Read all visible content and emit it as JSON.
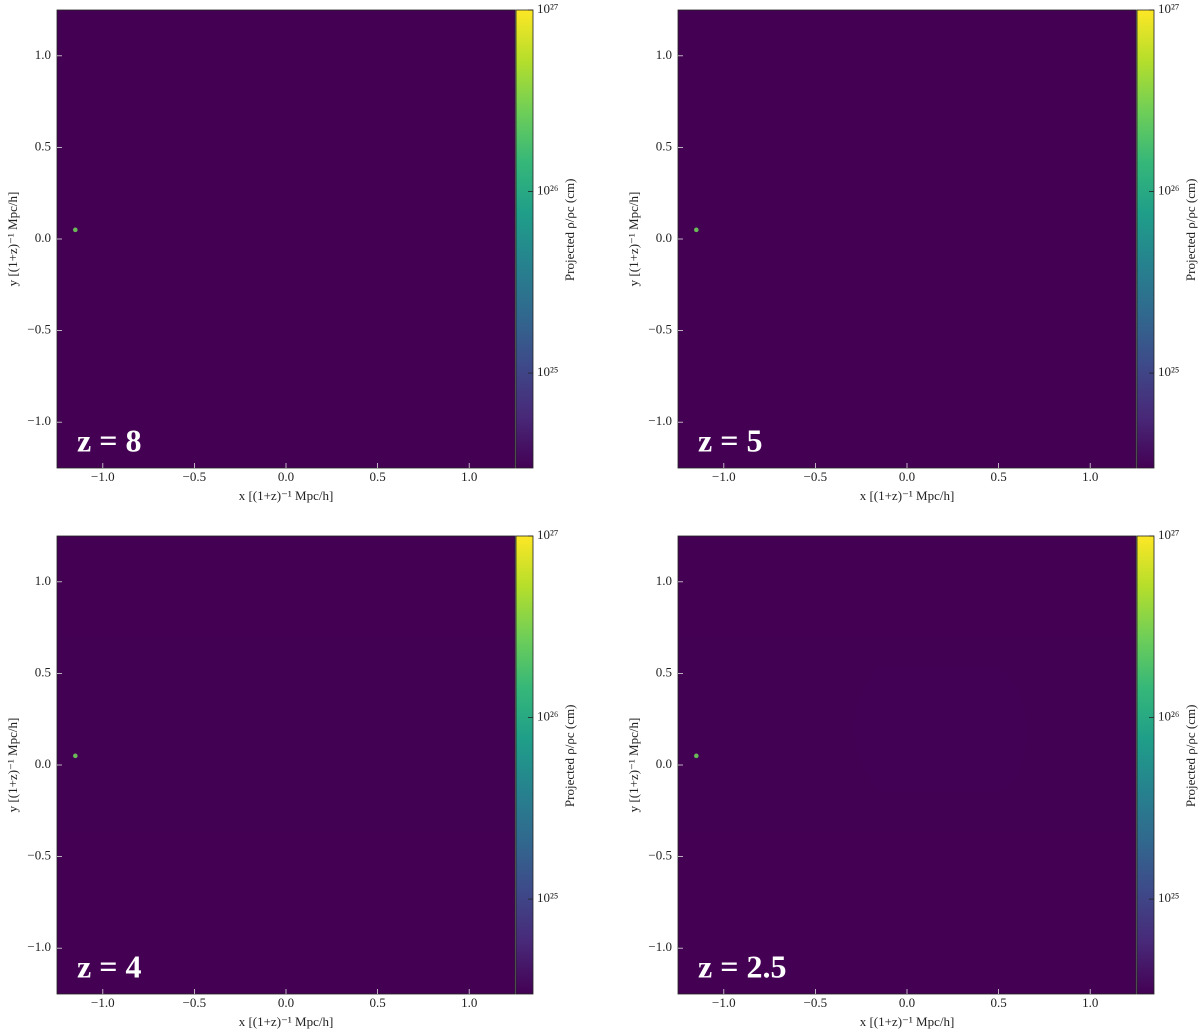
{
  "chart_data": [
    {
      "type": "image",
      "annotation": "z = 8",
      "strength": 1,
      "x_label": "x [(1+z)⁻¹ Mpc/h]",
      "y_label": "y [(1+z)⁻¹ Mpc/h]",
      "xlim": [
        -1.25,
        1.25
      ],
      "ylim": [
        -1.25,
        1.25
      ],
      "xticks": [
        {
          "value": -1,
          "label": "−1.0"
        },
        {
          "value": -0.5,
          "label": "−0.5"
        },
        {
          "value": 0,
          "label": "0.0"
        },
        0.5,
        {
          "value": 1,
          "label": "1.0"
        }
      ],
      "yticks": [
        {
          "value": -1,
          "label": "−1.0"
        },
        {
          "value": -0.5,
          "label": "−0.5"
        },
        {
          "value": 0,
          "label": "0.0"
        },
        0.5,
        {
          "value": 1,
          "label": "1.0"
        }
      ],
      "colorbar_label": "Projected ρ/ρc (cm)",
      "color_scale": "log",
      "clim": [
        3e+24,
        1e+27
      ],
      "cticks": [
        {
          "value": 1e+25,
          "label": "10²⁵"
        },
        {
          "value": 1e+26,
          "label": "10²⁶"
        },
        {
          "value": 1e+27,
          "label": "10²⁷"
        }
      ],
      "colormap": [
        "#440154",
        "#482878",
        "#3e4989",
        "#31688e",
        "#26828e",
        "#1f9e89",
        "#35b779",
        "#6ece58",
        "#b5de2b",
        "#fde725"
      ]
    },
    {
      "type": "image",
      "annotation": "z = 5",
      "strength": 2,
      "x_label": "x [(1+z)⁻¹ Mpc/h]",
      "y_label": "y [(1+z)⁻¹ Mpc/h]",
      "xlim": [
        -1.25,
        1.25
      ],
      "ylim": [
        -1.25,
        1.25
      ],
      "xticks": [
        {
          "value": -1,
          "label": "−1.0"
        },
        {
          "value": -0.5,
          "label": "−0.5"
        },
        {
          "value": 0,
          "label": "0.0"
        },
        0.5,
        {
          "value": 1,
          "label": "1.0"
        }
      ],
      "yticks": [
        {
          "value": -1,
          "label": "−1.0"
        },
        {
          "value": -0.5,
          "label": "−0.5"
        },
        {
          "value": 0,
          "label": "0.0"
        },
        0.5,
        {
          "value": 1,
          "label": "1.0"
        }
      ],
      "colorbar_label": "Projected ρ/ρc (cm)",
      "color_scale": "log",
      "clim": [
        3e+24,
        1e+27
      ],
      "cticks": [
        {
          "value": 1e+25,
          "label": "10²⁵"
        },
        {
          "value": 1e+26,
          "label": "10²⁶"
        },
        {
          "value": 1e+27,
          "label": "10²⁷"
        }
      ],
      "colormap": [
        "#440154",
        "#482878",
        "#3e4989",
        "#31688e",
        "#26828e",
        "#1f9e89",
        "#35b779",
        "#6ece58",
        "#b5de2b",
        "#fde725"
      ]
    },
    {
      "type": "image",
      "annotation": "z = 4",
      "strength": 3,
      "x_label": "x [(1+z)⁻¹ Mpc/h]",
      "y_label": "y [(1+z)⁻¹ Mpc/h]",
      "xlim": [
        -1.25,
        1.25
      ],
      "ylim": [
        -1.25,
        1.25
      ],
      "xticks": [
        {
          "value": -1,
          "label": "−1.0"
        },
        {
          "value": -0.5,
          "label": "−0.5"
        },
        {
          "value": 0,
          "label": "0.0"
        },
        0.5,
        {
          "value": 1,
          "label": "1.0"
        }
      ],
      "yticks": [
        {
          "value": -1,
          "label": "−1.0"
        },
        {
          "value": -0.5,
          "label": "−0.5"
        },
        {
          "value": 0,
          "label": "0.0"
        },
        0.5,
        {
          "value": 1,
          "label": "1.0"
        }
      ],
      "colorbar_label": "Projected ρ/ρc (cm)",
      "color_scale": "log",
      "clim": [
        3e+24,
        1e+27
      ],
      "cticks": [
        {
          "value": 1e+25,
          "label": "10²⁵"
        },
        {
          "value": 1e+26,
          "label": "10²⁶"
        },
        {
          "value": 1e+27,
          "label": "10²⁷"
        }
      ],
      "colormap": [
        "#440154",
        "#482878",
        "#3e4989",
        "#31688e",
        "#26828e",
        "#1f9e89",
        "#35b779",
        "#6ece58",
        "#b5de2b",
        "#fde725"
      ]
    },
    {
      "type": "image",
      "annotation": "z = 2.5",
      "strength": 4,
      "x_label": "x [(1+z)⁻¹ Mpc/h]",
      "y_label": "y [(1+z)⁻¹ Mpc/h]",
      "xlim": [
        -1.25,
        1.25
      ],
      "ylim": [
        -1.25,
        1.25
      ],
      "xticks": [
        {
          "value": -1,
          "label": "−1.0"
        },
        {
          "value": -0.5,
          "label": "−0.5"
        },
        {
          "value": 0,
          "label": "0.0"
        },
        0.5,
        {
          "value": 1,
          "label": "1.0"
        }
      ],
      "yticks": [
        {
          "value": -1,
          "label": "−1.0"
        },
        {
          "value": -0.5,
          "label": "−0.5"
        },
        {
          "value": 0,
          "label": "0.0"
        },
        0.5,
        {
          "value": 1,
          "label": "1.0"
        }
      ],
      "colorbar_label": "Projected ρ/ρc (cm)",
      "color_scale": "log",
      "clim": [
        3e+24,
        1e+27
      ],
      "cticks": [
        {
          "value": 1e+25,
          "label": "10²⁵"
        },
        {
          "value": 1e+26,
          "label": "10²⁶"
        },
        {
          "value": 1e+27,
          "label": "10²⁷"
        }
      ],
      "colormap": [
        "#440154",
        "#482878",
        "#3e4989",
        "#31688e",
        "#26828e",
        "#1f9e89",
        "#35b779",
        "#6ece58",
        "#b5de2b",
        "#fde725"
      ]
    }
  ]
}
